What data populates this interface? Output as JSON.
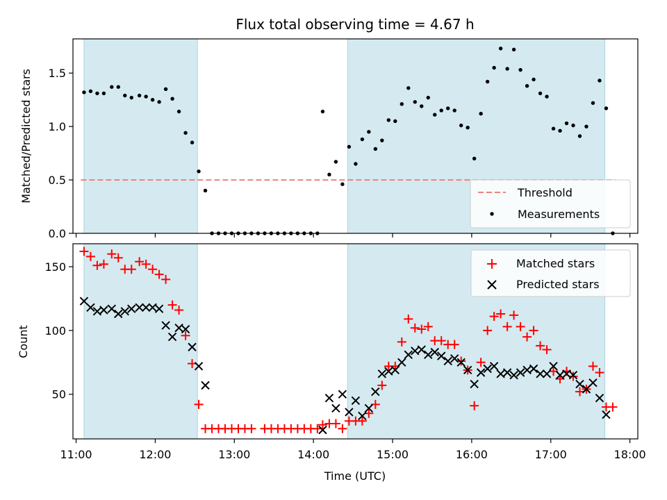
{
  "chart_data": [
    {
      "type": "scatter",
      "title": "Flux total observing time = 4.67 h",
      "xlabel": "",
      "ylabel": "Matched/Predicted stars",
      "ylim": [
        0,
        1.82
      ],
      "yticks": [
        0.0,
        0.5,
        1.0,
        1.5
      ],
      "ytick_labels": [
        "0.0",
        "0.5",
        "1.0",
        "1.5"
      ],
      "xlim_hours": [
        10.96,
        18.1
      ],
      "shaded_ranges": [
        [
          "11:06",
          "12:32"
        ],
        [
          "14:26",
          "17:41"
        ]
      ],
      "shade_color": "#d4eaf0",
      "grid": false,
      "legend_position": "lower right",
      "threshold": {
        "name": "Threshold",
        "value": 0.5,
        "color": "#f08080"
      },
      "measurements": {
        "name": "Measurements",
        "color": "#000000",
        "points": [
          [
            "11:06",
            1.32
          ],
          [
            "11:11",
            1.33
          ],
          [
            "11:16",
            1.31
          ],
          [
            "11:21",
            1.31
          ],
          [
            "11:27",
            1.37
          ],
          [
            "11:32",
            1.37
          ],
          [
            "11:37",
            1.29
          ],
          [
            "11:42",
            1.27
          ],
          [
            "11:48",
            1.29
          ],
          [
            "11:53",
            1.28
          ],
          [
            "11:58",
            1.25
          ],
          [
            "12:03",
            1.23
          ],
          [
            "12:08",
            1.35
          ],
          [
            "12:13",
            1.26
          ],
          [
            "12:18",
            1.14
          ],
          [
            "12:23",
            0.94
          ],
          [
            "12:28",
            0.85
          ],
          [
            "12:33",
            0.58
          ],
          [
            "12:38",
            0.4
          ],
          [
            "12:43",
            0.0
          ],
          [
            "12:48",
            0.0
          ],
          [
            "12:53",
            0.0
          ],
          [
            "12:58",
            0.0
          ],
          [
            "13:03",
            0.0
          ],
          [
            "13:08",
            0.0
          ],
          [
            "13:13",
            0.0
          ],
          [
            "13:18",
            0.0
          ],
          [
            "13:23",
            0.0
          ],
          [
            "13:28",
            0.0
          ],
          [
            "13:33",
            0.0
          ],
          [
            "13:38",
            0.0
          ],
          [
            "13:43",
            0.0
          ],
          [
            "13:48",
            0.0
          ],
          [
            "13:53",
            0.0
          ],
          [
            "13:58",
            0.0
          ],
          [
            "14:03",
            0.0
          ],
          [
            "14:07",
            1.14
          ],
          [
            "14:12",
            0.55
          ],
          [
            "14:17",
            0.67
          ],
          [
            "14:22",
            0.46
          ],
          [
            "14:27",
            0.81
          ],
          [
            "14:32",
            0.65
          ],
          [
            "14:37",
            0.88
          ],
          [
            "14:42",
            0.95
          ],
          [
            "14:47",
            0.79
          ],
          [
            "14:52",
            0.87
          ],
          [
            "14:57",
            1.06
          ],
          [
            "15:02",
            1.05
          ],
          [
            "15:07",
            1.21
          ],
          [
            "15:12",
            1.36
          ],
          [
            "15:17",
            1.23
          ],
          [
            "15:22",
            1.19
          ],
          [
            "15:27",
            1.27
          ],
          [
            "15:32",
            1.11
          ],
          [
            "15:37",
            1.15
          ],
          [
            "15:42",
            1.17
          ],
          [
            "15:47",
            1.15
          ],
          [
            "15:52",
            1.01
          ],
          [
            "15:57",
            0.99
          ],
          [
            "16:02",
            0.7
          ],
          [
            "16:07",
            1.12
          ],
          [
            "16:12",
            1.42
          ],
          [
            "16:17",
            1.55
          ],
          [
            "16:22",
            1.73
          ],
          [
            "16:27",
            1.54
          ],
          [
            "16:32",
            1.72
          ],
          [
            "16:37",
            1.53
          ],
          [
            "16:42",
            1.38
          ],
          [
            "16:47",
            1.44
          ],
          [
            "16:52",
            1.31
          ],
          [
            "16:57",
            1.28
          ],
          [
            "17:02",
            0.98
          ],
          [
            "17:07",
            0.96
          ],
          [
            "17:12",
            1.03
          ],
          [
            "17:17",
            1.01
          ],
          [
            "17:22",
            0.91
          ],
          [
            "17:27",
            1.0
          ],
          [
            "17:32",
            1.22
          ],
          [
            "17:37",
            1.43
          ],
          [
            "17:42",
            1.17
          ],
          [
            "17:47",
            0.0
          ]
        ]
      }
    },
    {
      "type": "scatter",
      "xlabel": "Time (UTC)",
      "ylabel": "Count",
      "ylim": [
        15,
        168
      ],
      "yticks": [
        50,
        100,
        150
      ],
      "ytick_labels": [
        "50",
        "100",
        "150"
      ],
      "xlim_hours": [
        10.96,
        18.1
      ],
      "xticks": [
        "11:00",
        "12:00",
        "13:00",
        "14:00",
        "15:00",
        "16:00",
        "17:00",
        "18:00"
      ],
      "shaded_ranges": [
        [
          "11:06",
          "12:32"
        ],
        [
          "14:26",
          "17:41"
        ]
      ],
      "grid": false,
      "legend_position": "upper right",
      "series": [
        {
          "name": "Matched stars",
          "marker": "plus",
          "color": "#ff0000",
          "points": [
            [
              "11:06",
              162
            ],
            [
              "11:11",
              158
            ],
            [
              "11:16",
              151
            ],
            [
              "11:21",
              152
            ],
            [
              "11:27",
              160
            ],
            [
              "11:32",
              157
            ],
            [
              "11:37",
              148
            ],
            [
              "11:42",
              148
            ],
            [
              "11:48",
              154
            ],
            [
              "11:53",
              152
            ],
            [
              "11:58",
              148
            ],
            [
              "12:03",
              144
            ],
            [
              "12:08",
              140
            ],
            [
              "12:13",
              120
            ],
            [
              "12:18",
              116
            ],
            [
              "12:23",
              96
            ],
            [
              "12:28",
              74
            ],
            [
              "12:33",
              42
            ],
            [
              "12:38",
              23
            ],
            [
              "12:43",
              23
            ],
            [
              "12:48",
              23
            ],
            [
              "12:53",
              23
            ],
            [
              "12:58",
              23
            ],
            [
              "13:03",
              23
            ],
            [
              "13:08",
              23
            ],
            [
              "13:13",
              23
            ],
            [
              "13:23",
              23
            ],
            [
              "13:28",
              23
            ],
            [
              "13:33",
              23
            ],
            [
              "13:38",
              23
            ],
            [
              "13:43",
              23
            ],
            [
              "13:48",
              23
            ],
            [
              "13:53",
              23
            ],
            [
              "13:58",
              23
            ],
            [
              "14:03",
              23
            ],
            [
              "14:07",
              26
            ],
            [
              "14:12",
              27
            ],
            [
              "14:17",
              27
            ],
            [
              "14:22",
              23
            ],
            [
              "14:27",
              29
            ],
            [
              "14:32",
              29
            ],
            [
              "14:37",
              29
            ],
            [
              "14:42",
              35
            ],
            [
              "14:47",
              42
            ],
            [
              "14:52",
              57
            ],
            [
              "14:57",
              72
            ],
            [
              "15:02",
              72
            ],
            [
              "15:07",
              91
            ],
            [
              "15:12",
              109
            ],
            [
              "15:17",
              102
            ],
            [
              "15:22",
              101
            ],
            [
              "15:27",
              103
            ],
            [
              "15:32",
              92
            ],
            [
              "15:37",
              92
            ],
            [
              "15:42",
              89
            ],
            [
              "15:47",
              89
            ],
            [
              "15:52",
              76
            ],
            [
              "15:57",
              69
            ],
            [
              "16:02",
              41
            ],
            [
              "16:07",
              75
            ],
            [
              "16:12",
              100
            ],
            [
              "16:17",
              111
            ],
            [
              "16:22",
              113
            ],
            [
              "16:27",
              103
            ],
            [
              "16:32",
              112
            ],
            [
              "16:37",
              103
            ],
            [
              "16:42",
              95
            ],
            [
              "16:47",
              100
            ],
            [
              "16:52",
              88
            ],
            [
              "16:57",
              85
            ],
            [
              "17:02",
              68
            ],
            [
              "17:07",
              62
            ],
            [
              "17:12",
              68
            ],
            [
              "17:17",
              64
            ],
            [
              "17:22",
              52
            ],
            [
              "17:27",
              54
            ],
            [
              "17:32",
              72
            ],
            [
              "17:37",
              67
            ],
            [
              "17:42",
              40
            ],
            [
              "17:47",
              40
            ]
          ]
        },
        {
          "name": "Predicted stars",
          "marker": "x",
          "color": "#000000",
          "points": [
            [
              "11:06",
              123
            ],
            [
              "11:11",
              118
            ],
            [
              "11:16",
              115
            ],
            [
              "11:21",
              116
            ],
            [
              "11:27",
              117
            ],
            [
              "11:32",
              113
            ],
            [
              "11:37",
              115
            ],
            [
              "11:42",
              117
            ],
            [
              "11:48",
              118
            ],
            [
              "11:53",
              118
            ],
            [
              "11:58",
              118
            ],
            [
              "12:03",
              117
            ],
            [
              "12:08",
              104
            ],
            [
              "12:13",
              95
            ],
            [
              "12:18",
              102
            ],
            [
              "12:23",
              101
            ],
            [
              "12:28",
              87
            ],
            [
              "12:33",
              72
            ],
            [
              "12:38",
              57
            ],
            [
              "14:07",
              22
            ],
            [
              "14:12",
              47
            ],
            [
              "14:17",
              39
            ],
            [
              "14:22",
              50
            ],
            [
              "14:27",
              36
            ],
            [
              "14:32",
              45
            ],
            [
              "14:37",
              33
            ],
            [
              "14:42",
              39
            ],
            [
              "14:47",
              52
            ],
            [
              "14:52",
              66
            ],
            [
              "14:57",
              68
            ],
            [
              "15:02",
              69
            ],
            [
              "15:07",
              75
            ],
            [
              "15:12",
              81
            ],
            [
              "15:17",
              84
            ],
            [
              "15:22",
              85
            ],
            [
              "15:27",
              81
            ],
            [
              "15:32",
              83
            ],
            [
              "15:37",
              80
            ],
            [
              "15:42",
              76
            ],
            [
              "15:47",
              78
            ],
            [
              "15:52",
              75
            ],
            [
              "15:57",
              69
            ],
            [
              "16:02",
              58
            ],
            [
              "16:07",
              67
            ],
            [
              "16:12",
              70
            ],
            [
              "16:17",
              72
            ],
            [
              "16:22",
              66
            ],
            [
              "16:27",
              67
            ],
            [
              "16:32",
              65
            ],
            [
              "16:37",
              67
            ],
            [
              "16:42",
              69
            ],
            [
              "16:47",
              70
            ],
            [
              "16:52",
              66
            ],
            [
              "16:57",
              66
            ],
            [
              "17:02",
              72
            ],
            [
              "17:07",
              65
            ],
            [
              "17:12",
              66
            ],
            [
              "17:17",
              65
            ],
            [
              "17:22",
              58
            ],
            [
              "17:27",
              54
            ],
            [
              "17:32",
              59
            ],
            [
              "17:37",
              47
            ],
            [
              "17:42",
              34
            ]
          ]
        }
      ]
    }
  ]
}
